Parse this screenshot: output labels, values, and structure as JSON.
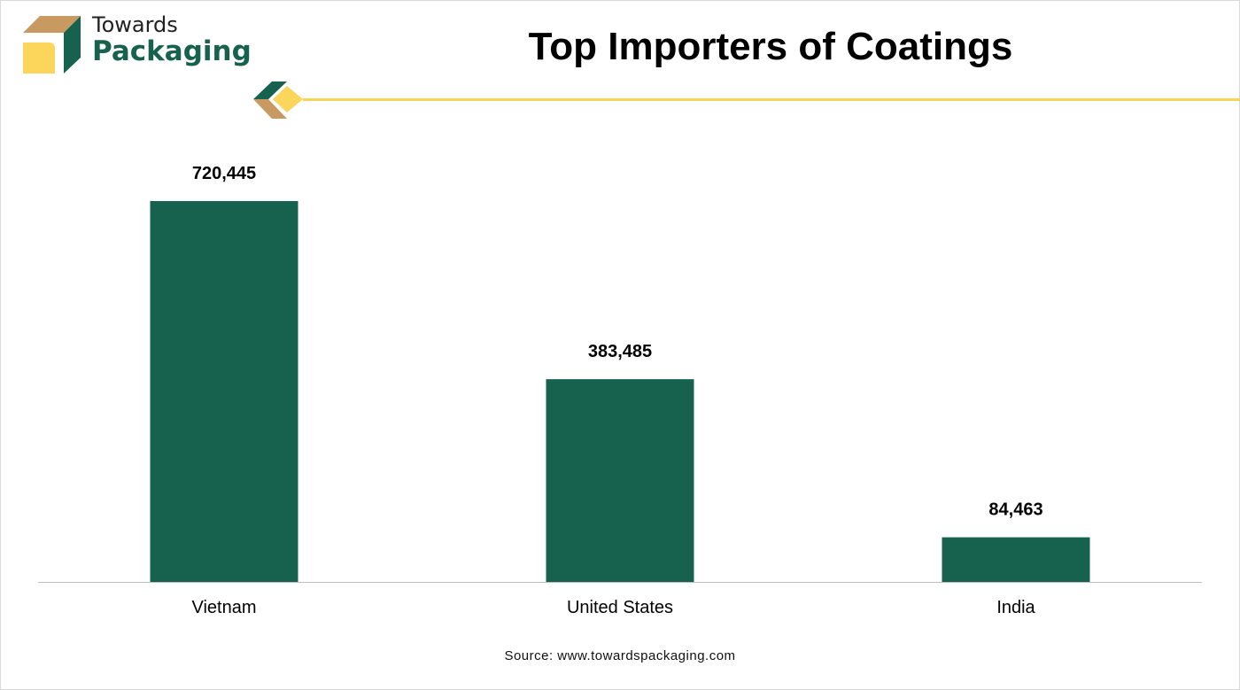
{
  "brand": {
    "line1": "Towards",
    "line2": "Packaging"
  },
  "colors": {
    "bar": "#17614f",
    "accent": "#f7d35a",
    "tan": "#c89a62"
  },
  "chart_data": {
    "type": "bar",
    "title": "Top Importers of Coatings",
    "categories": [
      "Vietnam",
      "United States",
      "India"
    ],
    "values": [
      720445,
      383485,
      84463
    ],
    "labels": [
      "720,445",
      "383,485",
      "84,463"
    ],
    "xlabel": "",
    "ylabel": "",
    "ylim": [
      0,
      720445
    ],
    "grid": false
  },
  "source": "Source: www.towardspackaging.com"
}
